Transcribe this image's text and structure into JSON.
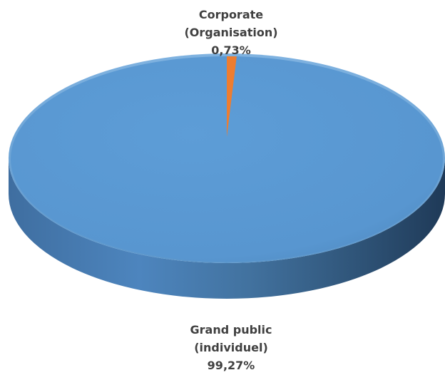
{
  "chart_data": {
    "type": "pie",
    "title": "",
    "slices": [
      {
        "category": "Grand public (individuel)",
        "label_lines": [
          "Grand public",
          "(individuel)"
        ],
        "value": 99.27,
        "value_label": "99,27%",
        "color": "#5B9BD5"
      },
      {
        "category": "Corporate (Organisation)",
        "label_lines": [
          "Corporate",
          "(Organisation)"
        ],
        "value": 0.73,
        "value_label": "0,73%",
        "color": "#ED7D31"
      }
    ],
    "style": "3d",
    "legend": "none"
  }
}
